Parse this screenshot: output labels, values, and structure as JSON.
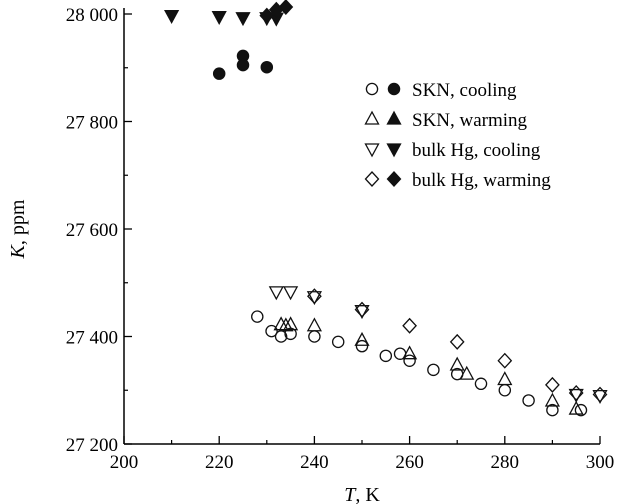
{
  "chart_data": {
    "type": "scatter",
    "xlabel": "T, K",
    "xlabel_var": "T",
    "xlabel_unit": ", K",
    "ylabel": "K, ppm",
    "ylabel_var": "K",
    "ylabel_unit": ", ppm",
    "xlim": [
      200,
      300
    ],
    "ylim": [
      27200,
      28000
    ],
    "xticks": [
      200,
      220,
      240,
      260,
      280,
      300
    ],
    "yticks": [
      27200,
      27400,
      27600,
      27800,
      28000
    ],
    "ytick_labels": [
      "27 200",
      "27 400",
      "27 600",
      "27 800",
      "28 000"
    ],
    "grid": false,
    "legend_position": "top-right",
    "legend": [
      {
        "label": "SKN, cooling",
        "open": "circle",
        "filled": "circle"
      },
      {
        "label": "SKN, warming",
        "open": "triangle-up",
        "filled": "triangle-up"
      },
      {
        "label": "bulk Hg, cooling",
        "open": "triangle-down",
        "filled": "triangle-down"
      },
      {
        "label": "bulk Hg, warming",
        "open": "diamond",
        "filled": "diamond"
      }
    ],
    "series": [
      {
        "name": "SKN, cooling",
        "marker": "circle",
        "filled": false,
        "points": [
          [
            228,
            27437
          ],
          [
            231,
            27410
          ],
          [
            233,
            27400
          ],
          [
            235,
            27405
          ],
          [
            240,
            27400
          ],
          [
            245,
            27390
          ],
          [
            250,
            27382
          ],
          [
            255,
            27364
          ],
          [
            258,
            27368
          ],
          [
            260,
            27355
          ],
          [
            265,
            27338
          ],
          [
            270,
            27330
          ],
          [
            275,
            27312
          ],
          [
            280,
            27300
          ],
          [
            285,
            27281
          ],
          [
            290,
            27263
          ],
          [
            296,
            27263
          ]
        ]
      },
      {
        "name": "SKN, warming",
        "marker": "triangle-up",
        "filled": false,
        "points": [
          [
            233,
            27422
          ],
          [
            234,
            27420
          ],
          [
            235,
            27422
          ],
          [
            240,
            27420
          ],
          [
            250,
            27393
          ],
          [
            260,
            27368
          ],
          [
            270,
            27347
          ],
          [
            272,
            27330
          ],
          [
            280,
            27320
          ],
          [
            290,
            27280
          ],
          [
            295,
            27265
          ]
        ]
      },
      {
        "name": "bulk Hg, cooling",
        "marker": "triangle-down",
        "filled": false,
        "points": [
          [
            232,
            27483
          ],
          [
            235,
            27483
          ],
          [
            240,
            27474
          ],
          [
            250,
            27448
          ],
          [
            295,
            27292
          ],
          [
            300,
            27290
          ]
        ]
      },
      {
        "name": "bulk Hg, warming",
        "marker": "diamond",
        "filled": false,
        "points": [
          [
            240,
            27475
          ],
          [
            250,
            27450
          ],
          [
            260,
            27420
          ],
          [
            270,
            27390
          ],
          [
            280,
            27355
          ],
          [
            290,
            27310
          ],
          [
            295,
            27295
          ],
          [
            300,
            27292
          ]
        ]
      },
      {
        "name": "SKN, cooling",
        "marker": "circle",
        "filled": true,
        "points": [
          [
            220,
            27889
          ],
          [
            225,
            27922
          ],
          [
            225,
            27905
          ],
          [
            230,
            27901
          ]
        ]
      },
      {
        "name": "SKN, warming",
        "marker": "triangle-up",
        "filled": true,
        "points": []
      },
      {
        "name": "bulk Hg, cooling",
        "marker": "triangle-down",
        "filled": true,
        "points": [
          [
            210,
            27997
          ],
          [
            220,
            27995
          ],
          [
            225,
            27993
          ],
          [
            230,
            27993
          ],
          [
            232,
            27992
          ]
        ]
      },
      {
        "name": "bulk Hg, warming",
        "marker": "diamond",
        "filled": true,
        "points": [
          [
            230,
            27997
          ],
          [
            232,
            28008
          ],
          [
            234,
            28013
          ]
        ]
      }
    ]
  }
}
